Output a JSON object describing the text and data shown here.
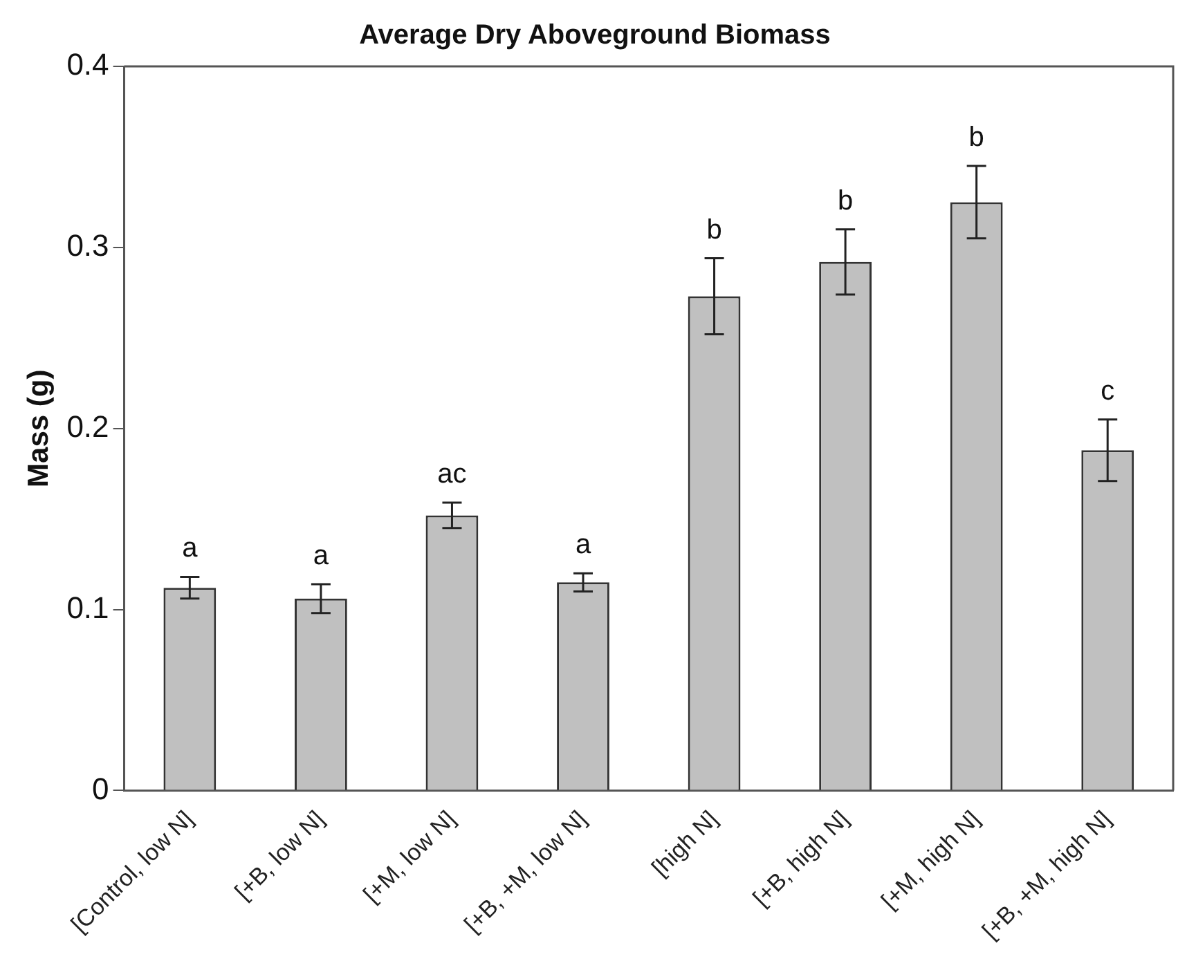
{
  "chart_data": {
    "type": "bar",
    "title": "Average Dry Aboveground Biomass",
    "ylabel": "Mass (g)",
    "categories": [
      "[Control, low N]",
      "[+B, low N]",
      "[+M, low N]",
      "[+B, +M, low N]",
      "[high N]",
      "[+B, high N]",
      "[+M, high N]",
      "[+B, +M, high N]"
    ],
    "values": [
      0.112,
      0.106,
      0.152,
      0.115,
      0.273,
      0.292,
      0.325,
      0.188
    ],
    "errors": [
      0.006,
      0.008,
      0.007,
      0.005,
      0.021,
      0.018,
      0.02,
      0.017
    ],
    "color": "#c0c0c0",
    "ylim": [
      0,
      0.4
    ],
    "yticks": [
      0,
      0.1,
      0.2,
      0.3,
      0.4
    ],
    "grid": false,
    "legend": false,
    "annotations": [
      {
        "text": "a",
        "x": "[Control, low N]",
        "y": 0.118
      },
      {
        "text": "a",
        "x": "[+B, low N]",
        "y": 0.114
      },
      {
        "text": "ac",
        "x": "[+M, low N]",
        "y": 0.159
      },
      {
        "text": "a",
        "x": "[+B, +M, low N]",
        "y": 0.12
      },
      {
        "text": "b",
        "x": "[high N]",
        "y": 0.294
      },
      {
        "text": "b",
        "x": "[+B, high N]",
        "y": 0.31
      },
      {
        "text": "b",
        "x": "[+M, high N]",
        "y": 0.345
      },
      {
        "text": "c",
        "x": "[+B, +M, high N]",
        "y": 0.205
      }
    ]
  }
}
